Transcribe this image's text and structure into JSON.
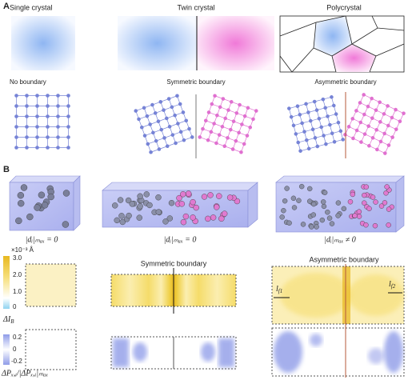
{
  "panel_a": {
    "label": "A",
    "columns": [
      {
        "title": "Single crystal",
        "boundary": "No boundary"
      },
      {
        "title": "Twin crystal",
        "boundary": "Symmetric boundary"
      },
      {
        "title": "Polycrystal",
        "boundary": "Asymmetric boundary"
      }
    ]
  },
  "panel_b": {
    "label": "B",
    "structures": [
      {
        "displacement": "|dᵢ|ₘₐₓ = 0"
      },
      {
        "displacement": "|dᵢ|ₘₐₓ = 0"
      },
      {
        "displacement": "|dᵢ|ₘₐₓ ≠ 0"
      }
    ],
    "intensity": {
      "unit": "×10⁻³ Å",
      "ticks": [
        "3.0",
        "2.0",
        "1.0",
        "0"
      ],
      "symbol": "ΔI",
      "subscript": "B",
      "map_titles": [
        "Symmetric boundary",
        "Asymmetric boundary"
      ],
      "annotations": [
        {
          "symbol": "l",
          "subscript": "f1"
        },
        {
          "symbol": "l",
          "subscript": "f2"
        }
      ]
    },
    "polarization": {
      "ticks": [
        "0.2",
        "0",
        "-0.2"
      ],
      "label": "ΔPₓ,ᵢ/|ΔPₓ,ᵢ|ₘₐₓ"
    }
  }
}
